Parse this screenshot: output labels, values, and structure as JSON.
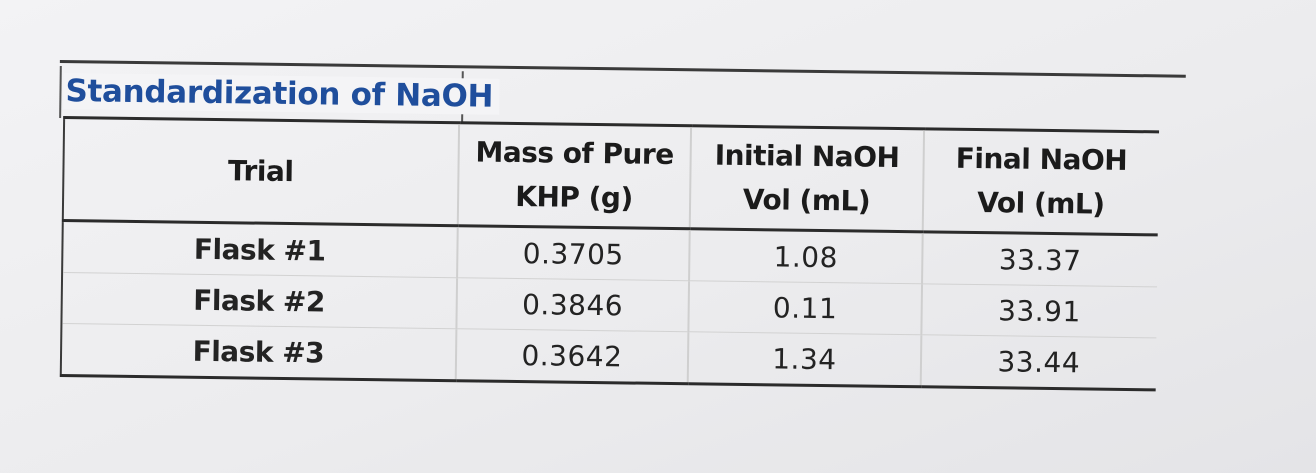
{
  "title": "Standardization of NaOH",
  "headers": {
    "trial": "Trial",
    "mass_line1": "Mass of Pure",
    "mass_line2": "KHP (g)",
    "initial_line1": "Initial NaOH",
    "initial_line2": "Vol (mL)",
    "final_line1": "Final NaOH",
    "final_line2": "Vol (mL)"
  },
  "rows": [
    {
      "trial": "Flask #1",
      "mass": "0.3705",
      "initial": "1.08",
      "final": "33.37"
    },
    {
      "trial": "Flask #2",
      "mass": "0.3846",
      "initial": "0.11",
      "final": "33.91"
    },
    {
      "trial": "Flask #3",
      "mass": "0.3642",
      "initial": "1.34",
      "final": "33.44"
    }
  ],
  "colors": {
    "title": "#1f4e9c",
    "text": "#1b1b1b",
    "border": "#2b2b2b"
  }
}
